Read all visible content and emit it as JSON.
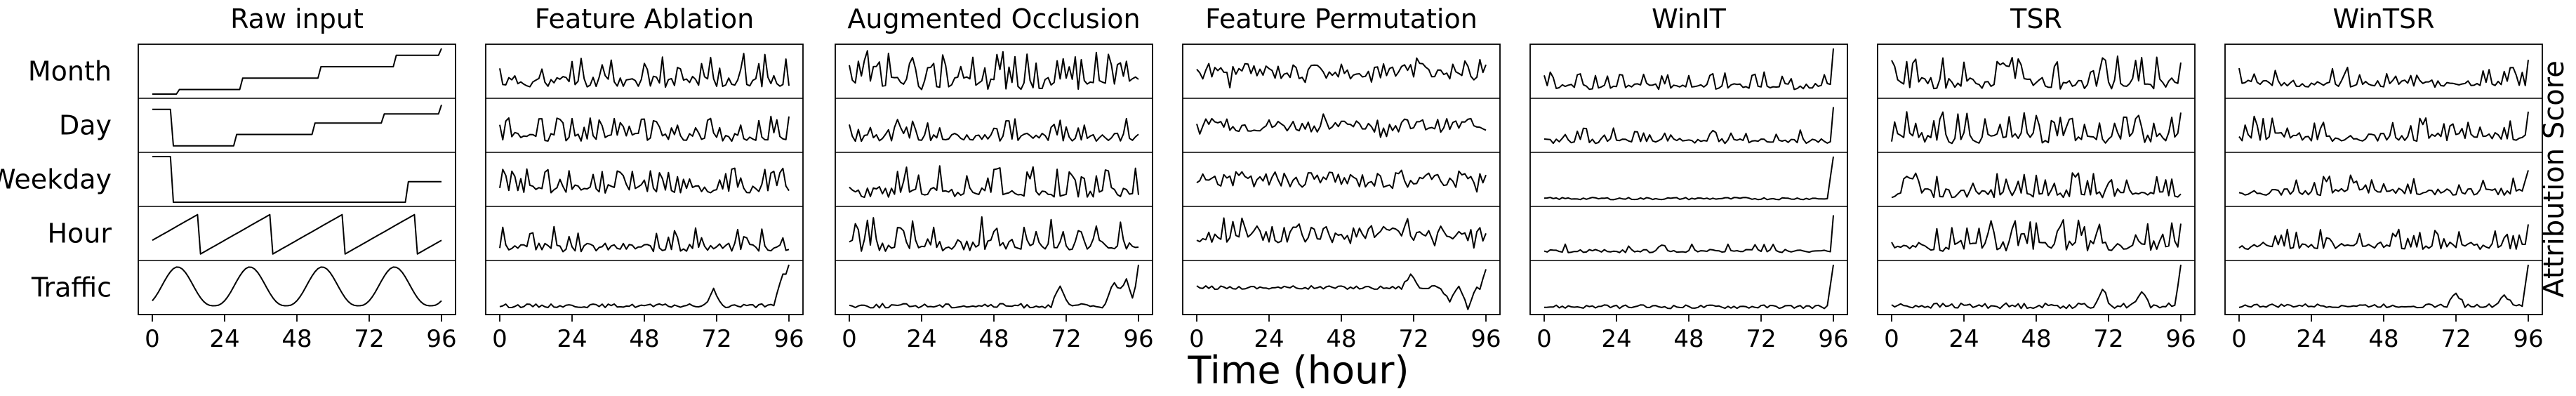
{
  "figure": {
    "xlabel": "Time (hour)",
    "ylabel": "Attribution Score"
  },
  "chart_data": {
    "type": "line",
    "xlabel": "Time (hour)",
    "ylabel": "Attribution Score",
    "x_ticks": [
      "0",
      "24",
      "48",
      "72",
      "96"
    ],
    "xlim": [
      0,
      96
    ],
    "rows": [
      "Month",
      "Day",
      "Weekday",
      "Hour",
      "Traffic"
    ],
    "panels": [
      {
        "title": "Raw input",
        "series": {
          "Month": {
            "kind": "steps",
            "levels": [
              0.0,
              0.1,
              0.35,
              0.6,
              0.85,
              1.0
            ],
            "changes": [
              9,
              30,
              56,
              81,
              96
            ]
          },
          "Day": {
            "kind": "steps",
            "levels": [
              0.85,
              0.05,
              0.3,
              0.55,
              0.75,
              0.95
            ],
            "changes": [
              7,
              28,
              54,
              77,
              96
            ]
          },
          "Weekday": {
            "kind": "steps",
            "levels": [
              1.0,
              0.0,
              0.45
            ],
            "changes": [
              7,
              85
            ]
          },
          "Hour": {
            "kind": "sawtooth",
            "period": 24,
            "offset": 8,
            "low": 0.05,
            "high": 0.95
          },
          "Traffic": {
            "kind": "wave",
            "period": 24,
            "phase": 0.65,
            "low": 0.1,
            "high": 0.95
          }
        }
      },
      {
        "title": "Feature Ablation",
        "series": {
          "Month": {
            "kind": "noise",
            "seed": 11,
            "base": 0.15,
            "amp": 0.75,
            "spikes": 0.3
          },
          "Day": {
            "kind": "noise",
            "seed": 12,
            "base": 0.15,
            "amp": 0.55,
            "spikes": 0.25
          },
          "Weekday": {
            "kind": "noise",
            "seed": 13,
            "base": 0.2,
            "amp": 0.55,
            "spikes": 0.25
          },
          "Hour": {
            "kind": "noise",
            "seed": 14,
            "base": 0.1,
            "amp": 0.55,
            "spikes": 0.15
          },
          "Traffic": {
            "kind": "quiet",
            "seed": 15,
            "base": 0.1,
            "amp": 0.08,
            "bumps": [
              [
                71,
                0.35
              ],
              [
                94,
                0.7
              ]
            ],
            "tail": 1.0
          }
        }
      },
      {
        "title": "Augmented Occlusion",
        "series": {
          "Month": {
            "kind": "noise",
            "seed": 21,
            "base": 0.1,
            "amp": 0.85,
            "spikes": 0.35
          },
          "Day": {
            "kind": "noise",
            "seed": 22,
            "base": 0.15,
            "amp": 0.5,
            "spikes": 0.25
          },
          "Weekday": {
            "kind": "noise",
            "seed": 23,
            "base": 0.1,
            "amp": 0.7,
            "spikes": 0.3
          },
          "Hour": {
            "kind": "noise",
            "seed": 24,
            "base": 0.1,
            "amp": 0.8,
            "spikes": 0.25
          },
          "Traffic": {
            "kind": "quiet",
            "seed": 25,
            "base": 0.1,
            "amp": 0.1,
            "bumps": [
              [
                70,
                0.4
              ],
              [
                88,
                0.55
              ],
              [
                92,
                0.6
              ]
            ],
            "tail": 1.0
          }
        }
      },
      {
        "title": "Feature Permutation",
        "series": {
          "Month": {
            "kind": "noise",
            "seed": 31,
            "base": 0.5,
            "amp": 0.35,
            "spikes": 0.15,
            "signed": true
          },
          "Day": {
            "kind": "noise",
            "seed": 32,
            "base": 0.5,
            "amp": 0.3,
            "spikes": 0.1,
            "signed": true
          },
          "Weekday": {
            "kind": "noise",
            "seed": 33,
            "base": 0.5,
            "amp": 0.35,
            "spikes": 0.1,
            "signed": true
          },
          "Hour": {
            "kind": "noise",
            "seed": 34,
            "base": 0.5,
            "amp": 0.4,
            "spikes": 0.15,
            "signed": true
          },
          "Traffic": {
            "kind": "quiet",
            "seed": 35,
            "base": 0.5,
            "amp": 0.08,
            "bumps": [
              [
                71,
                0.3
              ],
              [
                84,
                -0.3
              ],
              [
                90,
                -0.45
              ]
            ],
            "tail": 0.9,
            "signed": true
          }
        }
      },
      {
        "title": "WinIT",
        "series": {
          "Month": {
            "kind": "noise",
            "seed": 41,
            "base": 0.1,
            "amp": 0.4,
            "spikes": 0.2,
            "tail": 1.0
          },
          "Day": {
            "kind": "noise",
            "seed": 42,
            "base": 0.1,
            "amp": 0.35,
            "spikes": 0.2,
            "tail": 0.9
          },
          "Weekday": {
            "kind": "quiet",
            "seed": 43,
            "base": 0.08,
            "amp": 0.05,
            "bumps": [],
            "tail": 1.0
          },
          "Hour": {
            "kind": "noise",
            "seed": 44,
            "base": 0.08,
            "amp": 0.2,
            "spikes": 0.1,
            "tail": 0.9
          },
          "Traffic": {
            "kind": "quiet",
            "seed": 45,
            "base": 0.08,
            "amp": 0.08,
            "bumps": [],
            "tail": 1.0
          }
        }
      },
      {
        "title": "TSR",
        "series": {
          "Month": {
            "kind": "noise",
            "seed": 51,
            "base": 0.1,
            "amp": 0.75,
            "spikes": 0.3
          },
          "Day": {
            "kind": "noise",
            "seed": 52,
            "base": 0.1,
            "amp": 0.7,
            "spikes": 0.3
          },
          "Weekday": {
            "kind": "noise",
            "seed": 53,
            "base": 0.1,
            "amp": 0.55,
            "spikes": 0.25
          },
          "Hour": {
            "kind": "noise",
            "seed": 54,
            "base": 0.1,
            "amp": 0.7,
            "spikes": 0.3
          },
          "Traffic": {
            "kind": "quiet",
            "seed": 55,
            "base": 0.1,
            "amp": 0.12,
            "bumps": [
              [
                70,
                0.35
              ],
              [
                83,
                0.3
              ]
            ],
            "tail": 1.0
          }
        }
      },
      {
        "title": "WinTSR",
        "series": {
          "Month": {
            "kind": "noise",
            "seed": 61,
            "base": 0.15,
            "amp": 0.45,
            "spikes": 0.2,
            "tail": 0.75
          },
          "Day": {
            "kind": "noise",
            "seed": 62,
            "base": 0.15,
            "amp": 0.55,
            "spikes": 0.25,
            "tail": 0.8
          },
          "Weekday": {
            "kind": "noise",
            "seed": 63,
            "base": 0.15,
            "amp": 0.45,
            "spikes": 0.2,
            "tail": 0.7
          },
          "Hour": {
            "kind": "noise",
            "seed": 64,
            "base": 0.15,
            "amp": 0.45,
            "spikes": 0.2,
            "tail": 0.7
          },
          "Traffic": {
            "kind": "quiet",
            "seed": 65,
            "base": 0.1,
            "amp": 0.08,
            "bumps": [
              [
                72,
                0.3
              ],
              [
                88,
                0.25
              ]
            ],
            "tail": 1.0
          }
        }
      }
    ]
  }
}
